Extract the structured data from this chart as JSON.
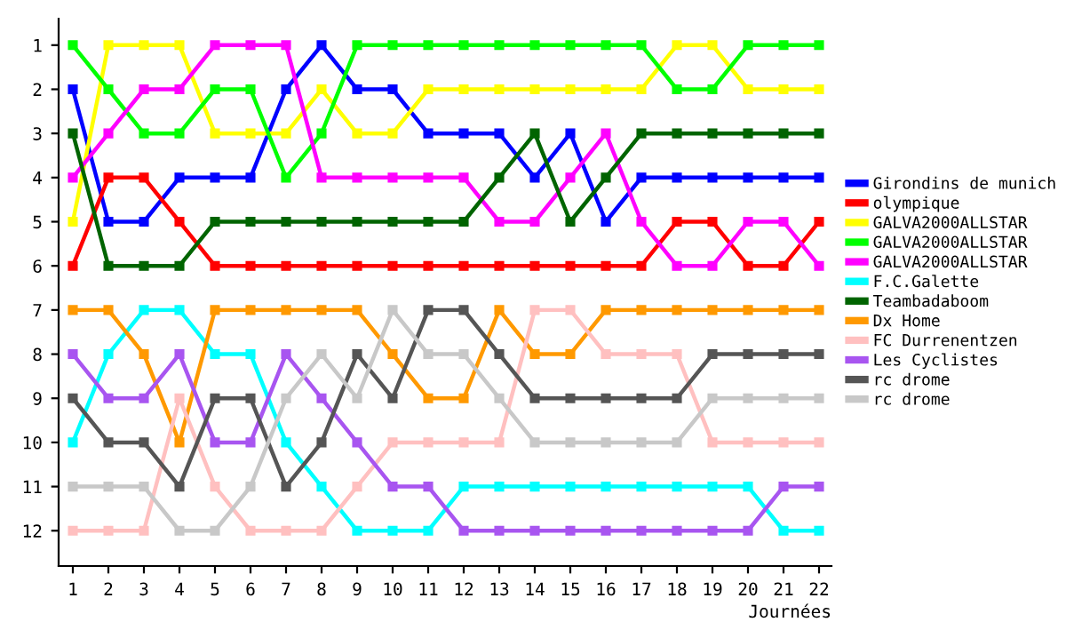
{
  "chart_data": {
    "type": "line",
    "xlabel": "Journées",
    "x": [
      1,
      2,
      3,
      4,
      5,
      6,
      7,
      8,
      9,
      10,
      11,
      12,
      13,
      14,
      15,
      16,
      17,
      18,
      19,
      20,
      21,
      22
    ],
    "xlim": [
      0.6,
      22.35
    ],
    "xticks": [
      1,
      2,
      3,
      4,
      5,
      6,
      7,
      8,
      9,
      10,
      11,
      12,
      13,
      14,
      15,
      16,
      17,
      18,
      19,
      20,
      21,
      22
    ],
    "ylim": [
      12.8,
      0.4
    ],
    "yticks": [
      1,
      2,
      3,
      4,
      5,
      6,
      7,
      8,
      9,
      10,
      11,
      12
    ],
    "grid": false,
    "legend": "right",
    "marker": "square",
    "line_style": "solid",
    "series": [
      {
        "name": "Girondins de munich",
        "color": "#0000ff",
        "values": [
          2,
          5,
          5,
          4,
          4,
          4,
          2,
          1,
          2,
          2,
          3,
          3,
          3,
          4,
          3,
          5,
          4,
          4,
          4,
          4,
          4,
          4
        ]
      },
      {
        "name": "olympique",
        "color": "#ff0000",
        "values": [
          6,
          4,
          4,
          5,
          6,
          6,
          6,
          6,
          6,
          6,
          6,
          6,
          6,
          6,
          6,
          6,
          6,
          5,
          5,
          6,
          6,
          5
        ]
      },
      {
        "name": "GALVA2000ALLSTAR",
        "color": "#ffff00",
        "values": [
          5,
          1,
          1,
          1,
          3,
          3,
          3,
          2,
          3,
          3,
          2,
          2,
          2,
          2,
          2,
          2,
          2,
          1,
          1,
          2,
          2,
          2
        ]
      },
      {
        "name": "GALVA2000ALLSTAR",
        "color": "#00ff00",
        "values": [
          1,
          2,
          3,
          3,
          2,
          2,
          4,
          3,
          1,
          1,
          1,
          1,
          1,
          1,
          1,
          1,
          1,
          2,
          2,
          1,
          1,
          1
        ]
      },
      {
        "name": "GALVA2000ALLSTAR",
        "color": "#ff00ff",
        "values": [
          4,
          3,
          2,
          2,
          1,
          1,
          1,
          4,
          4,
          4,
          4,
          4,
          5,
          5,
          4,
          3,
          5,
          6,
          6,
          5,
          5,
          6
        ]
      },
      {
        "name": "F.C.Galette",
        "color": "#00ffff",
        "values": [
          10,
          8,
          7,
          7,
          8,
          8,
          10,
          11,
          12,
          12,
          12,
          11,
          11,
          11,
          11,
          11,
          11,
          11,
          11,
          11,
          12,
          12
        ]
      },
      {
        "name": "Teambadaboom",
        "color": "#006400",
        "values": [
          3,
          6,
          6,
          6,
          5,
          5,
          5,
          5,
          5,
          5,
          5,
          5,
          4,
          3,
          5,
          4,
          3,
          3,
          3,
          3,
          3,
          3
        ]
      },
      {
        "name": "Dx Home",
        "color": "#ff9900",
        "values": [
          7,
          7,
          8,
          10,
          7,
          7,
          7,
          7,
          7,
          8,
          9,
          9,
          7,
          8,
          8,
          7,
          7,
          7,
          7,
          7,
          7,
          7
        ]
      },
      {
        "name": "FC Durrenentzen",
        "color": "#ffc0c0",
        "values": [
          12,
          12,
          12,
          9,
          11,
          12,
          12,
          12,
          11,
          10,
          10,
          10,
          10,
          7,
          7,
          8,
          8,
          8,
          10,
          10,
          10,
          10
        ]
      },
      {
        "name": "Les Cyclistes",
        "color": "#a855f0",
        "values": [
          8,
          9,
          9,
          8,
          10,
          10,
          8,
          9,
          10,
          11,
          11,
          12,
          12,
          12,
          12,
          12,
          12,
          12,
          12,
          12,
          11,
          11
        ]
      },
      {
        "name": "rc drome",
        "color": "#555555",
        "values": [
          9,
          10,
          10,
          11,
          9,
          9,
          11,
          10,
          8,
          9,
          7,
          7,
          8,
          9,
          9,
          9,
          9,
          9,
          8,
          8,
          8,
          8
        ]
      },
      {
        "name": "rc drome",
        "color": "#c8c8c8",
        "values": [
          11,
          11,
          11,
          12,
          12,
          11,
          9,
          8,
          9,
          7,
          8,
          8,
          9,
          10,
          10,
          10,
          10,
          10,
          9,
          9,
          9,
          9
        ]
      }
    ]
  }
}
